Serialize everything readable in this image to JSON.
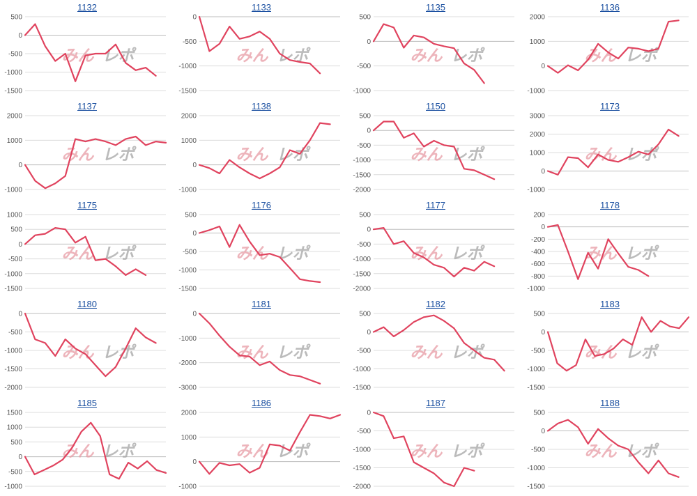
{
  "watermark": {
    "part1": "みん",
    "part2": "レポ"
  },
  "colors": {
    "line": "#e0435e",
    "title_link": "#1a4fa0",
    "grid": "#dcdcdc"
  },
  "chart_data": [
    {
      "title": "1132",
      "type": "line",
      "ylim": [
        -1500,
        500
      ],
      "yticks": [
        500,
        0,
        -500,
        -1000,
        -1500
      ],
      "values": [
        0,
        300,
        -300,
        -700,
        -500,
        -1250,
        -550,
        -500,
        -500,
        -250,
        -750,
        -950,
        -880,
        -1100
      ]
    },
    {
      "title": "1133",
      "type": "line",
      "ylim": [
        -1500,
        0
      ],
      "yticks": [
        0,
        -500,
        -1000,
        -1500
      ],
      "values": [
        0,
        -700,
        -550,
        -200,
        -450,
        -400,
        -300,
        -450,
        -750,
        -880,
        -920,
        -950,
        -1150
      ]
    },
    {
      "title": "1135",
      "type": "line",
      "ylim": [
        -1000,
        500
      ],
      "yticks": [
        500,
        0,
        -500,
        -1000
      ],
      "values": [
        0,
        350,
        280,
        -130,
        120,
        80,
        -50,
        -100,
        -140,
        -450,
        -580,
        -850
      ]
    },
    {
      "title": "1136",
      "type": "line",
      "ylim": [
        -1000,
        2000
      ],
      "yticks": [
        2000,
        1000,
        0,
        -1000
      ],
      "values": [
        0,
        -280,
        30,
        -180,
        250,
        900,
        550,
        300,
        750,
        700,
        600,
        700,
        1800,
        1850
      ]
    },
    {
      "title": "1137",
      "type": "line",
      "ylim": [
        -1000,
        2000
      ],
      "yticks": [
        2000,
        1000,
        0,
        -1000
      ],
      "values": [
        0,
        -650,
        -950,
        -750,
        -450,
        1050,
        950,
        1050,
        950,
        800,
        1050,
        1150,
        800,
        950,
        900
      ]
    },
    {
      "title": "1138",
      "type": "line",
      "ylim": [
        -1000,
        2000
      ],
      "yticks": [
        2000,
        1000,
        0,
        -1000
      ],
      "values": [
        0,
        -130,
        -350,
        200,
        -100,
        -350,
        -550,
        -350,
        -100,
        600,
        450,
        1000,
        1700,
        1650
      ]
    },
    {
      "title": "1150",
      "type": "line",
      "ylim": [
        -2000,
        500
      ],
      "yticks": [
        500,
        0,
        -500,
        -1000,
        -1500,
        -2000
      ],
      "values": [
        0,
        300,
        300,
        -250,
        -100,
        -550,
        -350,
        -500,
        -550,
        -1300,
        -1350,
        -1500,
        -1650
      ]
    },
    {
      "title": "1173",
      "type": "line",
      "ylim": [
        -1000,
        3000
      ],
      "yticks": [
        3000,
        2000,
        1000,
        0,
        -1000
      ],
      "values": [
        0,
        -200,
        750,
        700,
        200,
        900,
        600,
        500,
        750,
        1050,
        900,
        1450,
        2250,
        1900
      ]
    },
    {
      "title": "1175",
      "type": "line",
      "ylim": [
        -1500,
        1000
      ],
      "yticks": [
        1000,
        500,
        0,
        -500,
        -1000,
        -1500
      ],
      "values": [
        0,
        300,
        350,
        550,
        500,
        50,
        250,
        -550,
        -500,
        -750,
        -1050,
        -850,
        -1050
      ]
    },
    {
      "title": "1176",
      "type": "line",
      "ylim": [
        -1500,
        500
      ],
      "yticks": [
        500,
        0,
        -500,
        -1000,
        -1500
      ],
      "values": [
        0,
        80,
        180,
        -380,
        220,
        -230,
        -600,
        -560,
        -650,
        -950,
        -1250,
        -1300,
        -1330
      ]
    },
    {
      "title": "1177",
      "type": "line",
      "ylim": [
        -2000,
        500
      ],
      "yticks": [
        500,
        0,
        -500,
        -1000,
        -1500,
        -2000
      ],
      "values": [
        0,
        50,
        -500,
        -400,
        -800,
        -950,
        -1200,
        -1300,
        -1600,
        -1300,
        -1400,
        -1100,
        -1250
      ]
    },
    {
      "title": "1178",
      "type": "line",
      "ylim": [
        -1000,
        200
      ],
      "yticks": [
        200,
        0,
        -200,
        -400,
        -600,
        -800,
        -1000
      ],
      "values": [
        0,
        30,
        -400,
        -850,
        -420,
        -680,
        -200,
        -430,
        -650,
        -700,
        -800
      ]
    },
    {
      "title": "1180",
      "type": "line",
      "ylim": [
        -2000,
        0
      ],
      "yticks": [
        0,
        -500,
        -1000,
        -1500,
        -2000
      ],
      "values": [
        0,
        -700,
        -800,
        -1150,
        -700,
        -950,
        -1100,
        -1400,
        -1700,
        -1450,
        -950,
        -400,
        -650,
        -800
      ]
    },
    {
      "title": "1181",
      "type": "line",
      "ylim": [
        -3000,
        0
      ],
      "yticks": [
        0,
        -1000,
        -2000,
        -3000
      ],
      "values": [
        0,
        -400,
        -900,
        -1350,
        -1700,
        -1750,
        -2100,
        -1950,
        -2300,
        -2500,
        -2550,
        -2700,
        -2850
      ]
    },
    {
      "title": "1182",
      "type": "line",
      "ylim": [
        -1500,
        500
      ],
      "yticks": [
        500,
        0,
        -500,
        -1000,
        -1500
      ],
      "values": [
        0,
        130,
        -120,
        50,
        270,
        400,
        450,
        300,
        100,
        -300,
        -500,
        -700,
        -750,
        -1050
      ]
    },
    {
      "title": "1183",
      "type": "line",
      "ylim": [
        -1500,
        500
      ],
      "yticks": [
        500,
        0,
        -500,
        -1000,
        -1500
      ],
      "values": [
        0,
        -850,
        -1050,
        -900,
        -200,
        -650,
        -600,
        -450,
        -200,
        -350,
        400,
        0,
        300,
        150,
        100,
        400
      ]
    },
    {
      "title": "1185",
      "type": "line",
      "ylim": [
        -1000,
        1500
      ],
      "yticks": [
        1500,
        1000,
        500,
        0,
        -500,
        -1000
      ],
      "values": [
        0,
        -600,
        -450,
        -300,
        -100,
        300,
        850,
        1150,
        700,
        -600,
        -750,
        -200,
        -400,
        -150,
        -450,
        -550
      ]
    },
    {
      "title": "1186",
      "type": "line",
      "ylim": [
        -1000,
        2000
      ],
      "yticks": [
        2000,
        1000,
        0,
        -1000
      ],
      "values": [
        0,
        -500,
        -50,
        -150,
        -100,
        -450,
        -250,
        700,
        650,
        450,
        1200,
        1900,
        1850,
        1750,
        1900
      ]
    },
    {
      "title": "1187",
      "type": "line",
      "ylim": [
        -2000,
        0
      ],
      "yticks": [
        0,
        -500,
        -1000,
        -1500,
        -2000
      ],
      "values": [
        0,
        -100,
        -700,
        -650,
        -1350,
        -1500,
        -1650,
        -1900,
        -2000,
        -1500,
        -1580
      ]
    },
    {
      "title": "1188",
      "type": "line",
      "ylim": [
        -1500,
        500
      ],
      "yticks": [
        500,
        0,
        -500,
        -1000,
        -1500
      ],
      "values": [
        0,
        200,
        300,
        100,
        -350,
        50,
        -200,
        -400,
        -500,
        -850,
        -1150,
        -800,
        -1150,
        -1250
      ]
    }
  ]
}
